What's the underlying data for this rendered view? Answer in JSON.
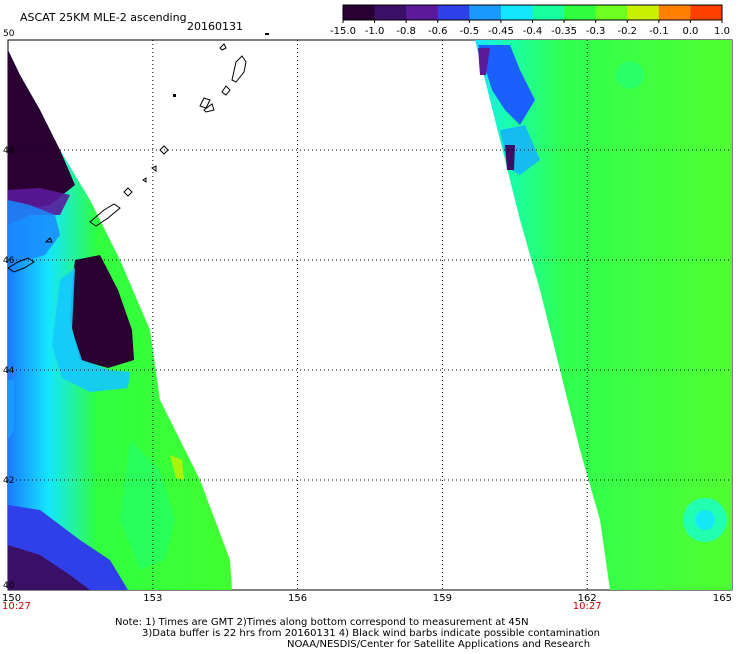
{
  "header": {
    "title": "ASCAT 25KM MLE-2 ascending",
    "date": "20160131"
  },
  "colorbar": {
    "labels": [
      "-15.0",
      "-1.0",
      "-0.8",
      "-0.6",
      "-0.5",
      "-0.45",
      "-0.4",
      "-0.35",
      "-0.3",
      "-0.2",
      "-0.1",
      "0.0",
      "1.0"
    ],
    "colors": [
      "#2a0033",
      "#3a0f66",
      "#5a1a9a",
      "#3040e8",
      "#1a9aff",
      "#14e6ff",
      "#18ffa0",
      "#30ff40",
      "#6cff20",
      "#c8f000",
      "#ff8000",
      "#ff4000",
      "#ff2020"
    ]
  },
  "chart_data": {
    "type": "heatmap",
    "title": "ASCAT 25KM MLE-2 ascending 20160131",
    "x_range": [
      150,
      165
    ],
    "y_range": [
      40,
      50
    ],
    "x_ticks": [
      "150",
      "153",
      "156",
      "159",
      "162",
      "165"
    ],
    "x_tick_values": [
      150,
      153,
      156,
      159,
      162,
      165
    ],
    "y_ticks": [
      "50",
      "48",
      "46",
      "44",
      "42",
      "40"
    ],
    "y_tick_values": [
      50,
      48,
      46,
      44,
      42,
      40
    ],
    "pass_times": [
      {
        "lon": 150,
        "time": "10:27"
      },
      {
        "lon": 162,
        "time": "10:27"
      }
    ],
    "grid": true,
    "colorbar_levels": [
      -15.0,
      -1.0,
      -0.8,
      -0.6,
      -0.5,
      -0.45,
      -0.4,
      -0.35,
      -0.3,
      -0.2,
      -0.1,
      0.0,
      1.0
    ]
  },
  "notes": [
    "Note: 1) Times are GMT 2)Times along bottom correspond to measurement at 45N",
    "3)Data buffer is 22 hrs from 20160131 4) Black wind barbs indicate possible contamination",
    "NOAA/NESDIS/Center for Satellite Applications and Research"
  ]
}
